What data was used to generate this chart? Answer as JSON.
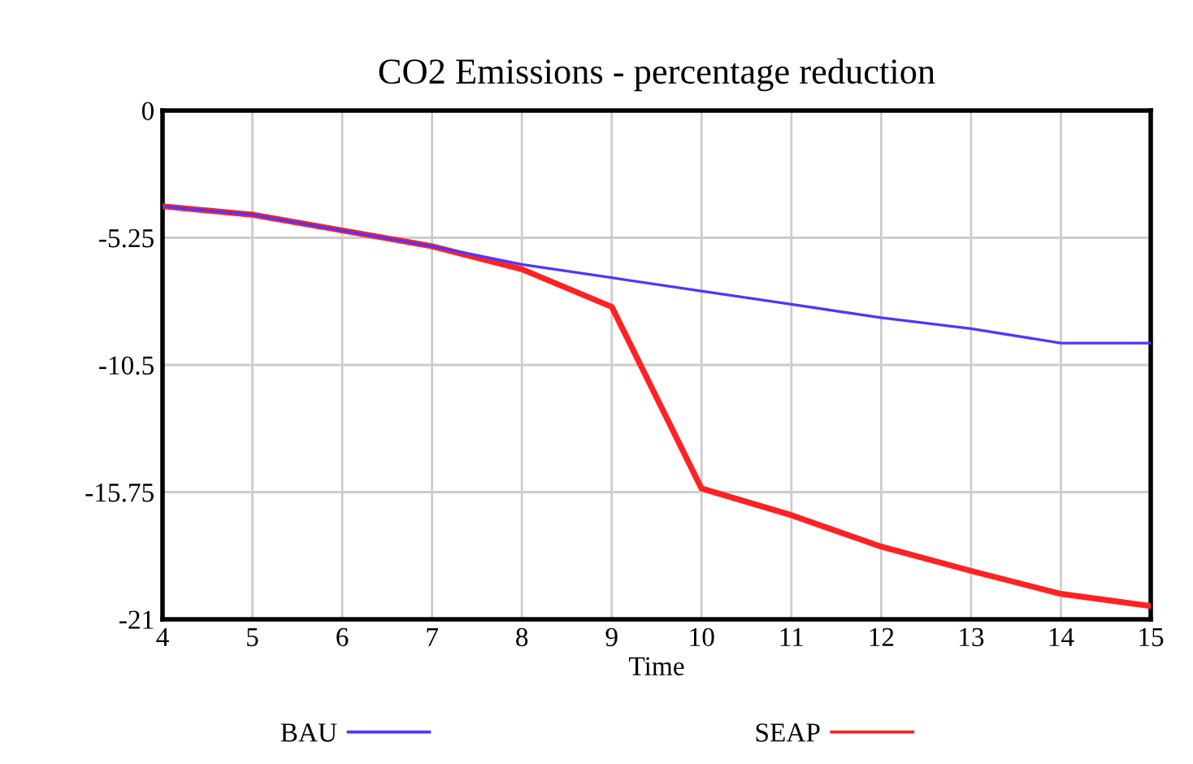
{
  "chart_data": {
    "type": "line",
    "title": "CO2 Emissions - percentage reduction",
    "xlabel": "Time",
    "x": [
      4,
      5,
      6,
      7,
      8,
      9,
      10,
      11,
      12,
      13,
      14,
      15
    ],
    "series": [
      {
        "name": "BAU",
        "color": "#5533ff",
        "values": [
          -3.95,
          -4.3,
          -4.95,
          -5.6,
          -6.35,
          -6.9,
          -7.45,
          -8.0,
          -8.55,
          -9.0,
          -9.6,
          -9.6
        ]
      },
      {
        "name": "SEAP",
        "color": "#ff2222",
        "values": [
          -3.95,
          -4.3,
          -4.95,
          -5.6,
          -6.55,
          -8.1,
          -15.6,
          -16.7,
          -18.0,
          -19.0,
          -19.95,
          -20.45
        ]
      }
    ],
    "xlim": [
      4,
      15
    ],
    "xticks": [
      4,
      5,
      6,
      7,
      8,
      9,
      10,
      11,
      12,
      13,
      14,
      15
    ],
    "ylim": [
      -21,
      0
    ],
    "yticks": [
      0,
      -5.25,
      -10.5,
      -15.75,
      -21
    ],
    "grid": true,
    "legend": "bottom"
  }
}
